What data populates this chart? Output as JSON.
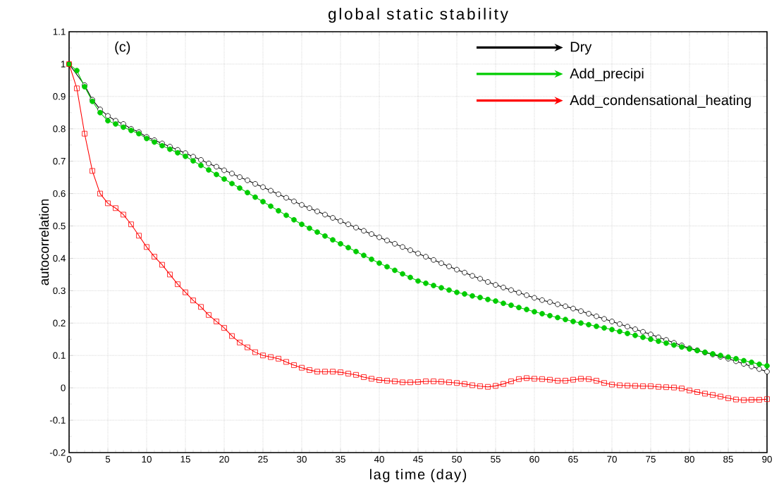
{
  "chart_data": {
    "type": "line",
    "title": "global static stability",
    "xlabel": "lag time (day)",
    "ylabel": "autocorrelation",
    "annotations": [
      "(c)"
    ],
    "x": [
      0,
      1,
      2,
      3,
      4,
      5,
      6,
      7,
      8,
      9,
      10,
      11,
      12,
      13,
      14,
      15,
      16,
      17,
      18,
      19,
      20,
      21,
      22,
      23,
      24,
      25,
      26,
      27,
      28,
      29,
      30,
      31,
      32,
      33,
      34,
      35,
      36,
      37,
      38,
      39,
      40,
      41,
      42,
      43,
      44,
      45,
      46,
      47,
      48,
      49,
      50,
      51,
      52,
      53,
      54,
      55,
      56,
      57,
      58,
      59,
      60,
      61,
      62,
      63,
      64,
      65,
      66,
      67,
      68,
      69,
      70,
      71,
      72,
      73,
      74,
      75,
      76,
      77,
      78,
      79,
      80,
      81,
      82,
      83,
      84,
      85,
      86,
      87,
      88,
      89,
      90
    ],
    "series": [
      {
        "name": "Dry",
        "color": "#000000",
        "marker": "circle",
        "values": [
          1,
          null,
          0.935,
          0.89,
          0.86,
          0.84,
          0.825,
          0.815,
          0.8,
          0.79,
          0.775,
          0.765,
          0.755,
          0.745,
          0.735,
          0.725,
          0.714,
          0.704,
          0.693,
          0.683,
          0.672,
          0.662,
          0.651,
          0.641,
          0.63,
          0.62,
          0.609,
          0.598,
          0.587,
          0.576,
          0.565,
          0.555,
          0.545,
          0.535,
          0.525,
          0.515,
          0.505,
          0.495,
          0.485,
          0.475,
          0.465,
          0.455,
          0.445,
          0.435,
          0.425,
          0.415,
          0.405,
          0.395,
          0.385,
          0.375,
          0.365,
          0.356,
          0.346,
          0.337,
          0.327,
          0.318,
          0.31,
          0.302,
          0.294,
          0.286,
          0.278,
          0.271,
          0.265,
          0.258,
          0.252,
          0.245,
          0.237,
          0.229,
          0.221,
          0.213,
          0.205,
          0.197,
          0.189,
          0.181,
          0.173,
          0.165,
          0.156,
          0.148,
          0.139,
          0.131,
          0.122,
          0.116,
          0.109,
          0.103,
          0.096,
          0.09,
          0.082,
          0.074,
          0.066,
          0.058,
          0.05
        ]
      },
      {
        "name": "Add_precipi",
        "color": "#00cc00",
        "marker": "circle",
        "values": [
          1,
          0.98,
          0.93,
          0.885,
          0.85,
          0.825,
          0.815,
          0.805,
          0.795,
          0.785,
          0.77,
          0.759,
          0.748,
          0.737,
          0.726,
          0.715,
          0.701,
          0.687,
          0.673,
          0.659,
          0.645,
          0.631,
          0.617,
          0.603,
          0.589,
          0.575,
          0.561,
          0.547,
          0.533,
          0.519,
          0.505,
          0.493,
          0.481,
          0.469,
          0.457,
          0.445,
          0.433,
          0.421,
          0.409,
          0.397,
          0.385,
          0.374,
          0.363,
          0.352,
          0.341,
          0.33,
          0.323,
          0.316,
          0.309,
          0.302,
          0.295,
          0.29,
          0.284,
          0.279,
          0.273,
          0.268,
          0.261,
          0.255,
          0.248,
          0.242,
          0.235,
          0.229,
          0.223,
          0.217,
          0.211,
          0.205,
          0.2,
          0.195,
          0.19,
          0.185,
          0.18,
          0.174,
          0.168,
          0.162,
          0.156,
          0.15,
          0.144,
          0.138,
          0.132,
          0.126,
          0.12,
          0.115,
          0.11,
          0.105,
          0.1,
          0.095,
          0.09,
          0.084,
          0.079,
          0.073,
          0.068
        ]
      },
      {
        "name": "Add_condensational_heating",
        "color": "#ff0000",
        "marker": "square",
        "values": [
          1,
          0.925,
          0.785,
          0.67,
          0.6,
          0.57,
          0.555,
          0.535,
          0.505,
          0.47,
          0.435,
          0.405,
          0.38,
          0.35,
          0.32,
          0.295,
          0.27,
          0.25,
          0.225,
          0.205,
          0.185,
          0.16,
          0.14,
          0.125,
          0.11,
          0.1,
          0.095,
          0.09,
          0.08,
          0.07,
          0.062,
          0.055,
          0.05,
          0.05,
          0.05,
          0.048,
          0.044,
          0.04,
          0.033,
          0.028,
          0.024,
          0.022,
          0.02,
          0.017,
          0.017,
          0.018,
          0.02,
          0.02,
          0.019,
          0.017,
          0.015,
          0.012,
          0.008,
          0.005,
          0.003,
          0.006,
          0.012,
          0.02,
          0.027,
          0.03,
          0.028,
          0.027,
          0.025,
          0.022,
          0.022,
          0.025,
          0.028,
          0.027,
          0.022,
          0.015,
          0.01,
          0.008,
          0.007,
          0.006,
          0.005,
          0.005,
          0.003,
          0.002,
          0.001,
          -0.002,
          -0.008,
          -0.013,
          -0.018,
          -0.022,
          -0.027,
          -0.032,
          -0.036,
          -0.038,
          -0.037,
          -0.037,
          -0.035
        ]
      }
    ],
    "xlim": [
      0,
      90
    ],
    "xticks": [
      0,
      5,
      10,
      15,
      20,
      25,
      30,
      35,
      40,
      45,
      50,
      55,
      60,
      65,
      70,
      75,
      80,
      85,
      90
    ],
    "ylim": [
      -0.2,
      1.1
    ],
    "yticks": [
      -0.2,
      -0.1,
      0,
      0.1,
      0.2,
      0.3,
      0.4,
      0.5,
      0.6,
      0.7,
      0.8,
      0.9,
      1,
      1.1
    ],
    "grid": true,
    "legend": "top right"
  }
}
